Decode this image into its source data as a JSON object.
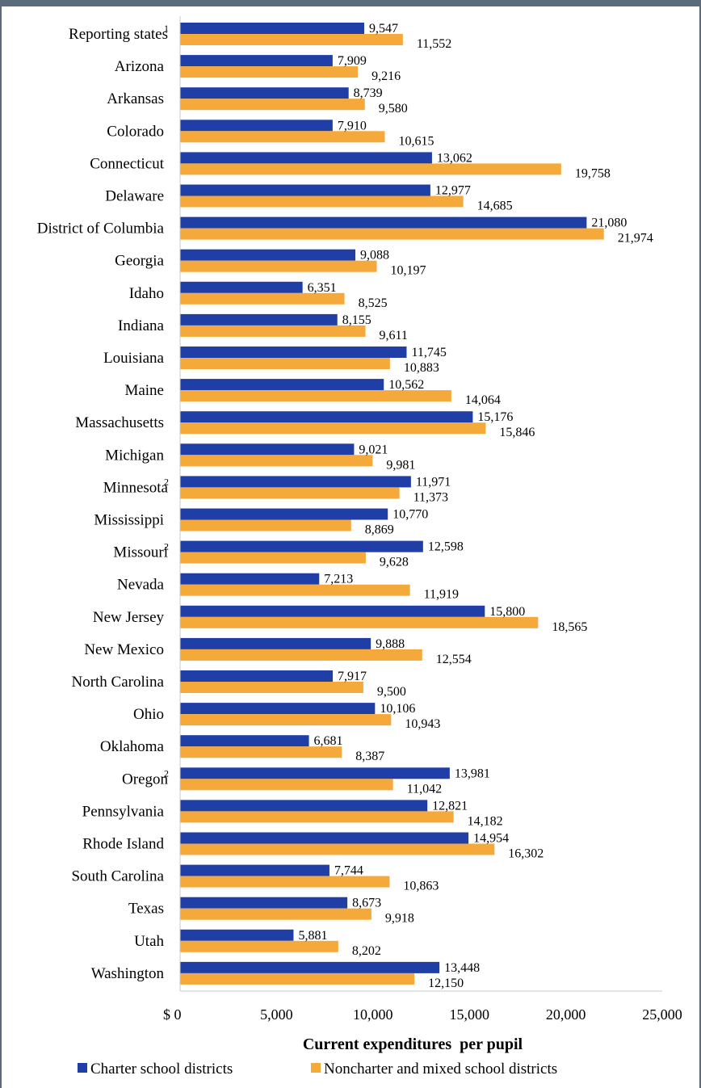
{
  "chart_data": {
    "type": "bar",
    "orientation": "horizontal",
    "categories": [
      "Reporting states",
      "Arizona",
      "Arkansas",
      "Colorado",
      "Connecticut",
      "Delaware",
      "District of Columbia",
      "Georgia",
      "Idaho",
      "Indiana",
      "Louisiana",
      "Maine",
      "Massachusetts",
      "Michigan",
      "Minnesota",
      "Mississippi",
      "Missouri",
      "Nevada",
      "New Jersey",
      "New Mexico",
      "North Carolina",
      "Ohio",
      "Oklahoma",
      "Oregon",
      "Pennsylvania",
      "Rhode Island",
      "South Carolina",
      "Texas",
      "Utah",
      "Washington"
    ],
    "category_superscripts": {
      "Reporting states": "1",
      "Minnesota": "2",
      "Missouri": "2",
      "Oregon": "2"
    },
    "series": [
      {
        "name": "Charter school districts",
        "color": "#1f3fa6",
        "values": [
          9547,
          7909,
          8739,
          7910,
          13062,
          12977,
          21080,
          9088,
          6351,
          8155,
          11745,
          10562,
          15176,
          9021,
          11971,
          10770,
          12598,
          7213,
          15800,
          9888,
          7917,
          10106,
          6681,
          13981,
          12821,
          14954,
          7744,
          8673,
          5881,
          13448
        ]
      },
      {
        "name": "Noncharter and mixed school districts",
        "color": "#f5a93a",
        "values": [
          11552,
          9216,
          9580,
          10615,
          19758,
          14685,
          21974,
          10197,
          8525,
          9611,
          10883,
          14064,
          15846,
          9981,
          11373,
          8869,
          9628,
          11919,
          18565,
          12554,
          9500,
          10943,
          8387,
          11042,
          14182,
          16302,
          10863,
          9918,
          8202,
          12150
        ]
      }
    ],
    "xlim": [
      0,
      25000
    ],
    "xticks": [
      0,
      5000,
      10000,
      15000,
      20000,
      25000
    ],
    "xtick_labels": [
      "$ 0",
      "5,000",
      "10,000",
      "15,000",
      "20,000",
      "25,000"
    ],
    "xlabel": "Current expenditures  per pupil",
    "legend_position": "bottom"
  }
}
